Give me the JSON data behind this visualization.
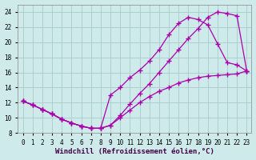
{
  "xlabel": "Windchill (Refroidissement éolien,°C)",
  "background_color": "#ceeaea",
  "grid_color": "#aacccc",
  "line_color": "#aa00aa",
  "xlim": [
    -0.5,
    23.5
  ],
  "ylim": [
    8,
    25
  ],
  "xticks": [
    0,
    1,
    2,
    3,
    4,
    5,
    6,
    7,
    8,
    9,
    10,
    11,
    12,
    13,
    14,
    15,
    16,
    17,
    18,
    19,
    20,
    21,
    22,
    23
  ],
  "yticks": [
    8,
    10,
    12,
    14,
    16,
    18,
    20,
    22,
    24
  ],
  "line1_x": [
    0,
    1,
    2,
    3,
    4,
    5,
    6,
    7,
    8,
    9,
    10,
    11,
    12,
    13,
    14,
    15,
    16,
    17,
    18,
    19,
    20,
    21,
    22,
    23
  ],
  "line1_y": [
    12.2,
    11.7,
    11.1,
    10.5,
    9.8,
    9.3,
    8.9,
    8.6,
    8.6,
    13.0,
    14.0,
    15.3,
    16.3,
    17.5,
    19.0,
    21.0,
    22.5,
    23.3,
    23.0,
    22.3,
    19.8,
    17.3,
    17.0,
    16.2
  ],
  "line2_x": [
    0,
    1,
    2,
    3,
    4,
    5,
    6,
    7,
    8,
    9,
    10,
    11,
    12,
    13,
    14,
    15,
    16,
    17,
    18,
    19,
    20,
    21,
    22,
    23
  ],
  "line2_y": [
    12.2,
    11.7,
    11.1,
    10.5,
    9.8,
    9.3,
    8.9,
    8.6,
    8.6,
    9.0,
    10.3,
    11.8,
    13.2,
    14.5,
    16.0,
    17.5,
    19.0,
    20.5,
    21.8,
    23.3,
    24.0,
    23.8,
    23.5,
    16.2
  ],
  "line3_x": [
    0,
    1,
    2,
    3,
    4,
    5,
    6,
    7,
    8,
    9,
    10,
    11,
    12,
    13,
    14,
    15,
    16,
    17,
    18,
    19,
    20,
    21,
    22,
    23
  ],
  "line3_y": [
    12.2,
    11.7,
    11.1,
    10.5,
    9.8,
    9.3,
    8.9,
    8.6,
    8.6,
    9.0,
    10.0,
    11.0,
    12.0,
    12.8,
    13.5,
    14.0,
    14.6,
    15.0,
    15.3,
    15.5,
    15.6,
    15.7,
    15.8,
    16.2
  ],
  "marker": "+",
  "markersize": 4,
  "linewidth": 0.9,
  "tick_fontsize": 5.5,
  "xlabel_fontsize": 6.5
}
